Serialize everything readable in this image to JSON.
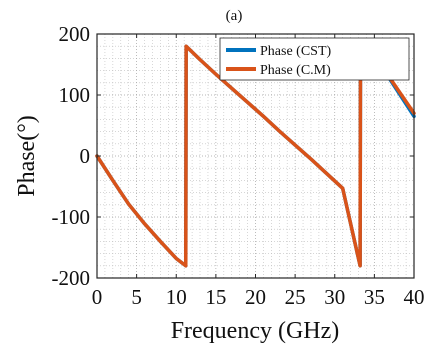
{
  "panel_label": "(a)",
  "chart_data": {
    "type": "line",
    "title": "",
    "xlabel": "Frequency (GHz)",
    "ylabel": "Phase(°)",
    "xlim": [
      0,
      40
    ],
    "ylim": [
      -200,
      200
    ],
    "xticks": [
      0,
      5,
      10,
      15,
      20,
      25,
      30,
      35,
      40
    ],
    "yticks": [
      -200,
      -100,
      0,
      100,
      200
    ],
    "xtick_labels": [
      "0",
      "5",
      "10",
      "15",
      "20",
      "25",
      "30",
      "35",
      "40"
    ],
    "ytick_labels": [
      "-200",
      "-100",
      "0",
      "100",
      "200"
    ],
    "grid": true,
    "minor_grid": true,
    "legend_position": "top-right",
    "series": [
      {
        "name": "Phase (CST)",
        "color": "#0072BD",
        "x": [
          0,
          2,
          4,
          6,
          8,
          10,
          11.2,
          11.25,
          13,
          15,
          17,
          19,
          21,
          23,
          25,
          27,
          29,
          31,
          33.2,
          33.25,
          35,
          37,
          40
        ],
        "y": [
          0,
          -40,
          -79,
          -111,
          -140,
          -168,
          -180,
          180,
          158,
          134,
          111,
          88,
          65,
          41,
          18,
          -5,
          -29,
          -53,
          -180,
          180,
          154,
          125,
          65
        ]
      },
      {
        "name": "Phase (C.M)",
        "color": "#D95319",
        "x": [
          0,
          2,
          4,
          6,
          8,
          10,
          11.2,
          11.25,
          13,
          15,
          17,
          19,
          21,
          23,
          25,
          27,
          29,
          31,
          33.2,
          33.25,
          35,
          37,
          40
        ],
        "y": [
          0,
          -40,
          -79,
          -111,
          -140,
          -168,
          -180,
          180,
          158,
          134,
          111,
          88,
          65,
          41,
          18,
          -5,
          -29,
          -53,
          -180,
          180,
          155,
          127,
          70
        ]
      }
    ]
  }
}
